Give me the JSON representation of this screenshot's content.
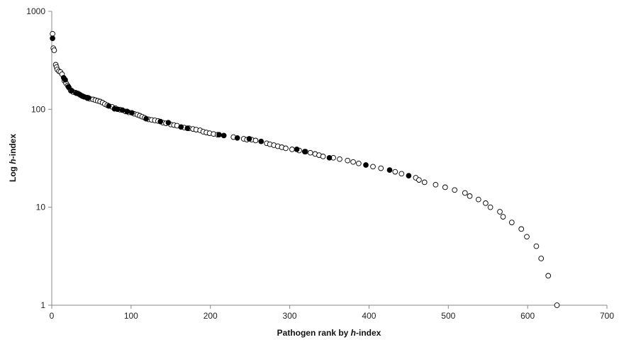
{
  "chart_data": {
    "type": "scatter",
    "title": "",
    "xlabel": {
      "prefix": "Pathogen rank by ",
      "italic": "h",
      "suffix": "-index"
    },
    "ylabel": {
      "prefix": "Log ",
      "italic": "h",
      "suffix": "-index"
    },
    "xlim": [
      0,
      700
    ],
    "ylim": [
      1,
      1000
    ],
    "y_scale": "log",
    "x_ticks": [
      "0",
      "100",
      "200",
      "300",
      "400",
      "500",
      "600",
      "700"
    ],
    "y_ticks": [
      "1",
      "10",
      "100",
      "1000"
    ],
    "grid": false,
    "legend": "none",
    "colors": {
      "filled": "#000000",
      "open_fill": "#ffffff",
      "open_stroke": "#000000"
    },
    "series": [
      {
        "marker": "open",
        "points": [
          [
            1,
            590
          ],
          [
            2,
            420
          ],
          [
            3,
            400
          ],
          [
            5,
            285
          ],
          [
            6,
            270
          ],
          [
            7,
            255
          ],
          [
            9,
            245
          ],
          [
            11,
            240
          ],
          [
            13,
            228
          ],
          [
            16,
            195
          ],
          [
            18,
            185
          ],
          [
            20,
            175
          ],
          [
            22,
            165
          ],
          [
            24,
            155
          ],
          [
            27,
            150
          ],
          [
            30,
            148
          ],
          [
            33,
            145
          ],
          [
            36,
            140
          ],
          [
            39,
            136
          ],
          [
            45,
            130
          ],
          [
            48,
            128
          ],
          [
            52,
            126
          ],
          [
            55,
            124
          ],
          [
            58,
            122
          ],
          [
            61,
            120
          ],
          [
            64,
            117
          ],
          [
            67,
            113
          ],
          [
            70,
            110
          ],
          [
            76,
            106
          ],
          [
            80,
            103
          ],
          [
            86,
            99
          ],
          [
            93,
            95
          ],
          [
            97,
            93
          ],
          [
            104,
            90
          ],
          [
            108,
            88
          ],
          [
            111,
            86
          ],
          [
            114,
            84
          ],
          [
            117,
            82
          ],
          [
            122,
            79
          ],
          [
            126,
            78
          ],
          [
            130,
            77
          ],
          [
            134,
            76
          ],
          [
            140,
            73
          ],
          [
            144,
            72
          ],
          [
            150,
            70
          ],
          [
            154,
            69
          ],
          [
            158,
            68
          ],
          [
            167,
            65
          ],
          [
            173,
            64
          ],
          [
            178,
            63
          ],
          [
            182,
            62
          ],
          [
            187,
            61
          ],
          [
            191,
            59
          ],
          [
            195,
            58
          ],
          [
            199,
            57
          ],
          [
            204,
            56
          ],
          [
            209,
            55
          ],
          [
            229,
            52
          ],
          [
            242,
            50
          ],
          [
            246,
            49
          ],
          [
            252,
            49
          ],
          [
            257,
            48
          ],
          [
            271,
            45
          ],
          [
            275,
            44
          ],
          [
            280,
            43
          ],
          [
            285,
            42
          ],
          [
            290,
            41
          ],
          [
            295,
            40
          ],
          [
            303,
            39
          ],
          [
            312,
            38
          ],
          [
            320,
            37
          ],
          [
            326,
            36
          ],
          [
            332,
            35
          ],
          [
            337,
            34
          ],
          [
            342,
            33
          ],
          [
            355,
            32
          ],
          [
            363,
            31
          ],
          [
            373,
            30
          ],
          [
            380,
            29
          ],
          [
            387,
            28
          ],
          [
            405,
            26
          ],
          [
            415,
            25
          ],
          [
            433,
            23
          ],
          [
            441,
            22
          ],
          [
            459,
            20
          ],
          [
            463,
            19
          ],
          [
            470,
            18
          ],
          [
            484,
            17
          ],
          [
            496,
            16
          ],
          [
            508,
            15
          ],
          [
            521,
            14
          ],
          [
            527,
            13
          ],
          [
            538,
            12
          ],
          [
            547,
            11
          ],
          [
            553,
            10
          ],
          [
            565,
            9
          ],
          [
            569,
            8
          ],
          [
            580,
            7
          ],
          [
            592,
            6
          ],
          [
            599,
            5
          ],
          [
            611,
            4
          ],
          [
            617,
            3
          ],
          [
            626,
            2
          ],
          [
            637,
            1
          ]
        ]
      },
      {
        "marker": "filled",
        "points": [
          [
            1,
            530
          ],
          [
            15,
            210
          ],
          [
            17,
            200
          ],
          [
            21,
            170
          ],
          [
            25,
            155
          ],
          [
            31,
            146
          ],
          [
            35,
            142
          ],
          [
            38,
            137
          ],
          [
            41,
            134
          ],
          [
            44,
            132
          ],
          [
            46,
            131
          ],
          [
            72,
            108
          ],
          [
            79,
            101
          ],
          [
            83,
            100
          ],
          [
            89,
            98
          ],
          [
            95,
            95
          ],
          [
            101,
            92
          ],
          [
            119,
            80
          ],
          [
            137,
            75
          ],
          [
            147,
            73
          ],
          [
            163,
            66
          ],
          [
            171,
            64
          ],
          [
            211,
            55
          ],
          [
            217,
            54
          ],
          [
            234,
            51
          ],
          [
            249,
            50
          ],
          [
            264,
            47
          ],
          [
            309,
            39
          ],
          [
            319,
            37
          ],
          [
            350,
            32
          ],
          [
            396,
            27
          ],
          [
            426,
            24
          ],
          [
            450,
            21
          ]
        ]
      }
    ]
  }
}
